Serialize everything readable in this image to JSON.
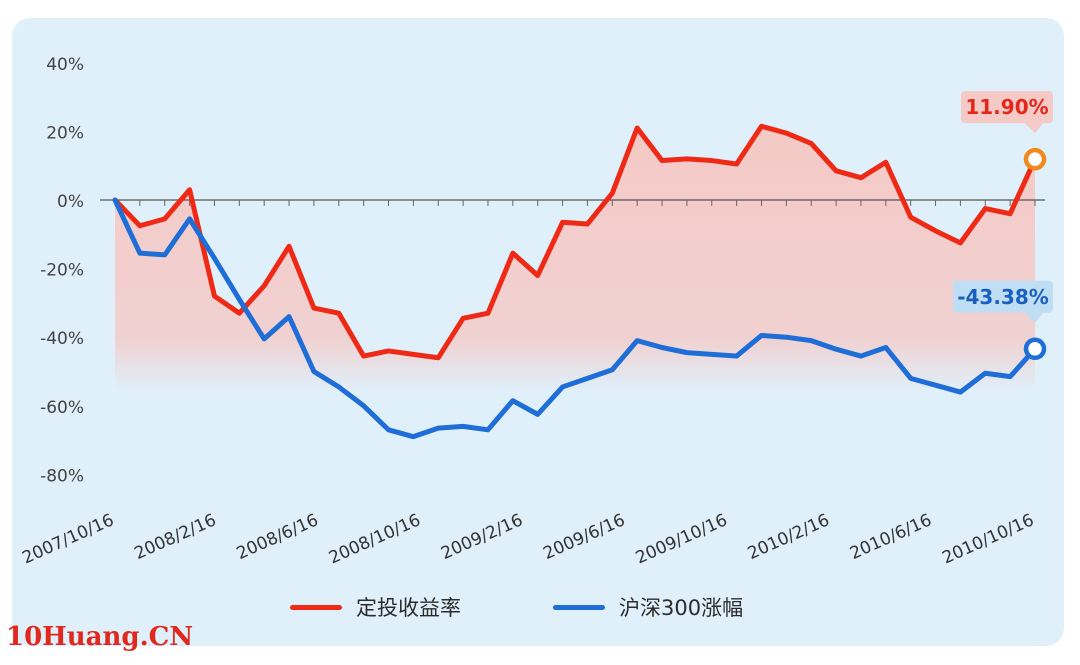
{
  "chart_data": {
    "type": "line",
    "title": "",
    "xlabel": "",
    "ylabel": "",
    "ylim": [
      -80,
      40
    ],
    "y_ticks": [
      "40%",
      "20%",
      "0%",
      "-20%",
      "-40%",
      "-60%",
      "-80%"
    ],
    "x_tick_labels": [
      "2007/10/16",
      "2008/2/16",
      "2008/6/16",
      "2008/10/16",
      "2009/2/16",
      "2009/6/16",
      "2009/10/16",
      "2010/2/16",
      "2010/6/16",
      "2010/10/16"
    ],
    "x_months_span": 36,
    "legend_position": "bottom",
    "series": [
      {
        "name": "定投收益率",
        "color": "#ee2a16",
        "fill_color": "#f6c7c3",
        "end_label": "11.90%",
        "label_bg": "#f4c9c6",
        "label_color": "#e3271a",
        "values": [
          0,
          -7.5,
          -5.5,
          3,
          -28,
          -33,
          -25,
          -13.5,
          -31.5,
          -33,
          -45.5,
          -44,
          -45,
          -46,
          -34.5,
          -33,
          -15.5,
          -22,
          -6.5,
          -7,
          2,
          21,
          11.5,
          12,
          11.5,
          10.5,
          21.5,
          19.5,
          16.5,
          8.5,
          6.5,
          11,
          -5,
          -9,
          -12.5,
          -2.5,
          -4,
          11.9
        ]
      },
      {
        "name": "沪深300涨幅",
        "color": "#1f6dd6",
        "end_label": "-43.38%",
        "label_bg": "#bfddf3",
        "label_color": "#1a5fc0",
        "values": [
          0,
          -15.5,
          -16,
          -5.5,
          -17,
          -29,
          -40.5,
          -34,
          -50,
          -54.5,
          -60,
          -67,
          -69,
          -66.5,
          -66,
          -67,
          -58.5,
          -62.5,
          -54.5,
          -52,
          -49.5,
          -41,
          -43,
          -44.5,
          -45,
          -45.5,
          -39.5,
          -40,
          -41,
          -43.5,
          -45.5,
          -43,
          -52,
          -54,
          -56,
          -50.5,
          -51.5,
          -43.38
        ]
      }
    ]
  },
  "watermark": "10Huang.CN"
}
